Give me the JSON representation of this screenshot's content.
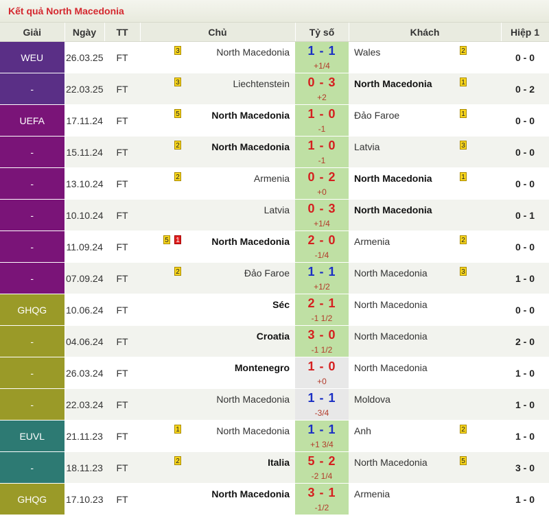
{
  "title": "Kết quả North Macedonia",
  "headers": {
    "league": "Giải",
    "date": "Ngày",
    "tt": "TT",
    "home": "Chủ",
    "score": "Tỷ số",
    "away": "Khách",
    "half": "Hiệp 1"
  },
  "colors": {
    "WEU": "#5a2f86",
    "UEFA": "#7a1478",
    "GHQG": "#9a9a28",
    "EUVL": "#2d7a73",
    "title": "#d4282f",
    "score_bg": "#bfe0a4",
    "score_red": "#d51f1f",
    "score_blue": "#1a2fc4"
  },
  "rows": [
    {
      "league": "WEU",
      "group": "WEU",
      "date": "26.03.25",
      "tt": "FT",
      "home": "North Macedonia",
      "home_bold": false,
      "home_cards": [
        {
          "type": "yellow",
          "n": "3"
        }
      ],
      "score": "1 - 1",
      "score_color": "blue",
      "hc": "+1/4",
      "away": "Wales",
      "away_bold": false,
      "away_cards": [
        {
          "type": "yellow",
          "n": "2"
        }
      ],
      "half": "0 - 0"
    },
    {
      "league": "-",
      "group": "WEU",
      "date": "22.03.25",
      "tt": "FT",
      "home": "Liechtenstein",
      "home_bold": false,
      "home_cards": [
        {
          "type": "yellow",
          "n": "3"
        }
      ],
      "score": "0 - 3",
      "score_color": "red",
      "hc": "+2",
      "away": "North Macedonia",
      "away_bold": true,
      "away_cards": [
        {
          "type": "yellow",
          "n": "1"
        }
      ],
      "half": "0 - 2"
    },
    {
      "league": "UEFA",
      "group": "UEFA",
      "date": "17.11.24",
      "tt": "FT",
      "home": "North Macedonia",
      "home_bold": true,
      "home_cards": [
        {
          "type": "yellow",
          "n": "5"
        }
      ],
      "score": "1 - 0",
      "score_color": "red",
      "hc": "-1",
      "away": "Đảo Faroe",
      "away_bold": false,
      "away_cards": [
        {
          "type": "yellow",
          "n": "1"
        }
      ],
      "half": "0 - 0"
    },
    {
      "league": "-",
      "group": "UEFA",
      "date": "15.11.24",
      "tt": "FT",
      "home": "North Macedonia",
      "home_bold": true,
      "home_cards": [
        {
          "type": "yellow",
          "n": "2"
        }
      ],
      "score": "1 - 0",
      "score_color": "red",
      "hc": "-1",
      "away": "Latvia",
      "away_bold": false,
      "away_cards": [
        {
          "type": "yellow",
          "n": "3"
        }
      ],
      "half": "0 - 0"
    },
    {
      "league": "-",
      "group": "UEFA",
      "date": "13.10.24",
      "tt": "FT",
      "home": "Armenia",
      "home_bold": false,
      "home_cards": [
        {
          "type": "yellow",
          "n": "2"
        }
      ],
      "score": "0 - 2",
      "score_color": "red",
      "hc": "+0",
      "away": "North Macedonia",
      "away_bold": true,
      "away_cards": [
        {
          "type": "yellow",
          "n": "1"
        }
      ],
      "half": "0 - 0"
    },
    {
      "league": "-",
      "group": "UEFA",
      "date": "10.10.24",
      "tt": "FT",
      "home": "Latvia",
      "home_bold": false,
      "home_cards": [],
      "score": "0 - 3",
      "score_color": "red",
      "hc": "+1/4",
      "away": "North Macedonia",
      "away_bold": true,
      "away_cards": [],
      "half": "0 - 1"
    },
    {
      "league": "-",
      "group": "UEFA",
      "date": "11.09.24",
      "tt": "FT",
      "home": "North Macedonia",
      "home_bold": true,
      "home_cards": [
        {
          "type": "yellow",
          "n": "5"
        },
        {
          "type": "red",
          "n": "1"
        }
      ],
      "score": "2 - 0",
      "score_color": "red",
      "hc": "-1/4",
      "away": "Armenia",
      "away_bold": false,
      "away_cards": [
        {
          "type": "yellow",
          "n": "2"
        }
      ],
      "half": "0 - 0"
    },
    {
      "league": "-",
      "group": "UEFA",
      "date": "07.09.24",
      "tt": "FT",
      "home": "Đảo Faroe",
      "home_bold": false,
      "home_cards": [
        {
          "type": "yellow",
          "n": "2"
        }
      ],
      "score": "1 - 1",
      "score_color": "blue",
      "hc": "+1/2",
      "away": "North Macedonia",
      "away_bold": false,
      "away_cards": [
        {
          "type": "yellow",
          "n": "3"
        }
      ],
      "half": "1 - 0"
    },
    {
      "league": "GHQG",
      "group": "GHQG",
      "date": "10.06.24",
      "tt": "FT",
      "home": "Séc",
      "home_bold": true,
      "home_cards": [],
      "score": "2 - 1",
      "score_color": "red",
      "hc": "-1 1/2",
      "away": "North Macedonia",
      "away_bold": false,
      "away_cards": [],
      "half": "0 - 0"
    },
    {
      "league": "-",
      "group": "GHQG",
      "date": "04.06.24",
      "tt": "FT",
      "home": "Croatia",
      "home_bold": true,
      "home_cards": [],
      "score": "3 - 0",
      "score_color": "red",
      "hc": "-1 1/2",
      "away": "North Macedonia",
      "away_bold": false,
      "away_cards": [],
      "half": "2 - 0"
    },
    {
      "league": "-",
      "group": "GHQG",
      "date": "26.03.24",
      "tt": "FT",
      "home": "Montenegro",
      "home_bold": true,
      "home_cards": [],
      "score": "1 - 0",
      "score_color": "red",
      "hc": "+0",
      "away": "North Macedonia",
      "away_bold": false,
      "away_cards": [],
      "half": "1 - 0",
      "score_bg": "neutral"
    },
    {
      "league": "-",
      "group": "GHQG",
      "date": "22.03.24",
      "tt": "FT",
      "home": "North Macedonia",
      "home_bold": false,
      "home_cards": [],
      "score": "1 - 1",
      "score_color": "blue",
      "hc": "-3/4",
      "away": "Moldova",
      "away_bold": false,
      "away_cards": [],
      "half": "1 - 0",
      "score_bg": "neutral"
    },
    {
      "league": "EUVL",
      "group": "EUVL",
      "date": "21.11.23",
      "tt": "FT",
      "home": "North Macedonia",
      "home_bold": false,
      "home_cards": [
        {
          "type": "yellow",
          "n": "1"
        }
      ],
      "score": "1 - 1",
      "score_color": "blue",
      "hc": "+1 3/4",
      "away": "Anh",
      "away_bold": false,
      "away_cards": [
        {
          "type": "yellow",
          "n": "2"
        }
      ],
      "half": "1 - 0"
    },
    {
      "league": "-",
      "group": "EUVL",
      "date": "18.11.23",
      "tt": "FT",
      "home": "Italia",
      "home_bold": true,
      "home_cards": [
        {
          "type": "yellow",
          "n": "2"
        }
      ],
      "score": "5 - 2",
      "score_color": "red",
      "hc": "-2 1/4",
      "away": "North Macedonia",
      "away_bold": false,
      "away_cards": [
        {
          "type": "yellow",
          "n": "5"
        }
      ],
      "half": "3 - 0"
    },
    {
      "league": "GHQG",
      "group": "GHQG",
      "date": "17.10.23",
      "tt": "FT",
      "home": "North Macedonia",
      "home_bold": true,
      "home_cards": [],
      "score": "3 - 1",
      "score_color": "red",
      "hc": "-1/2",
      "away": "Armenia",
      "away_bold": false,
      "away_cards": [],
      "half": "1 - 0"
    }
  ]
}
